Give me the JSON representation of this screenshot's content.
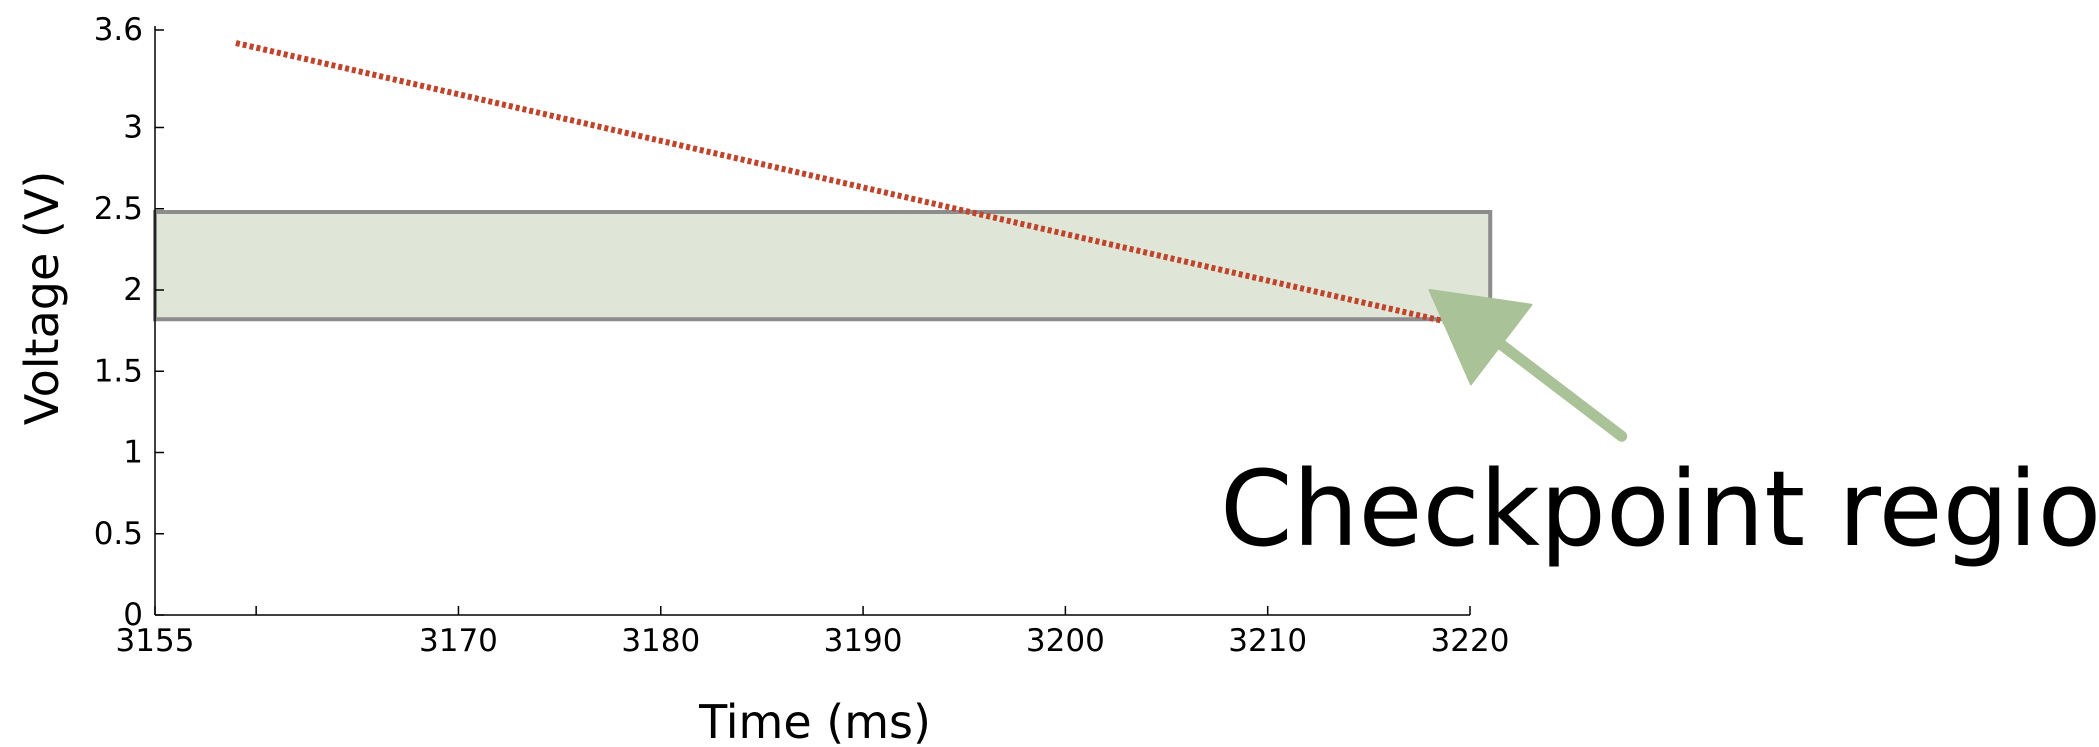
{
  "chart_data": {
    "type": "line",
    "title": "",
    "xlabel": "Time (ms)",
    "ylabel": "Voltage (V)",
    "xlim": [
      3155,
      3220
    ],
    "ylim": [
      0,
      3.6
    ],
    "x_ticks": [
      {
        "value": 3155,
        "label": "3155"
      },
      {
        "value": 3170,
        "label": "3170"
      },
      {
        "value": 3180,
        "label": "3180"
      },
      {
        "value": 3190,
        "label": "3190"
      },
      {
        "value": 3200,
        "label": "3200"
      },
      {
        "value": 3210,
        "label": "3210"
      },
      {
        "value": 3220,
        "label": "3220"
      }
    ],
    "x_minor_ticks": [
      3160
    ],
    "y_ticks": [
      {
        "value": 0,
        "label": "0"
      },
      {
        "value": 0.5,
        "label": "0.5"
      },
      {
        "value": 1,
        "label": "1"
      },
      {
        "value": 1.5,
        "label": "1.5"
      },
      {
        "value": 2,
        "label": "2"
      },
      {
        "value": 2.5,
        "label": "2.5"
      },
      {
        "value": 3,
        "label": "3"
      },
      {
        "value": 3.6,
        "label": "3.6"
      }
    ],
    "grid": false,
    "series": [
      {
        "x": [
          3159,
          3219
        ],
        "y": [
          3.52,
          1.8
        ],
        "style": "dotted",
        "color": "#c0442a"
      }
    ],
    "region": {
      "x": [
        3155,
        3221
      ],
      "y": [
        1.82,
        2.48
      ],
      "fill": "#dfe6d8",
      "stroke": "#8c8c8c"
    },
    "annotation": {
      "text": "Checkpoint region",
      "arrow_color": "#a9c298",
      "arrow_from": [
        3227.5,
        1.1
      ],
      "arrow_to": [
        3218,
        2.0
      ]
    }
  }
}
